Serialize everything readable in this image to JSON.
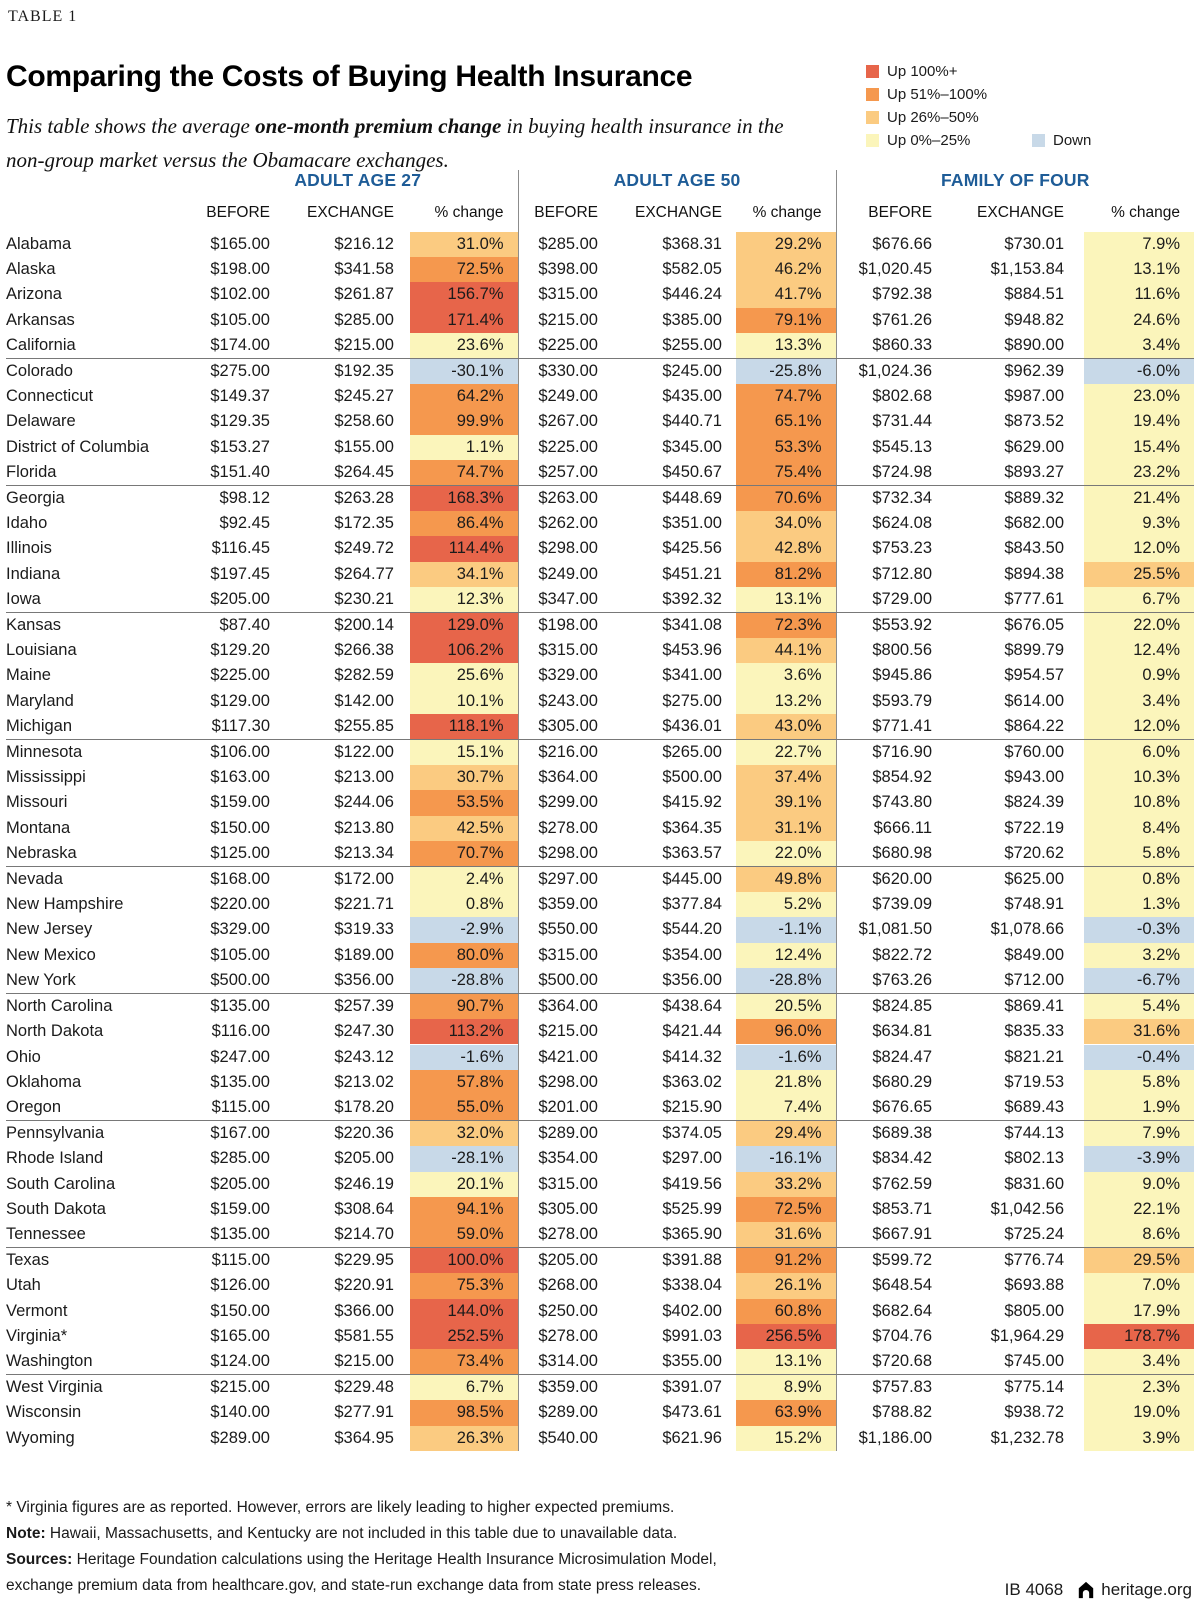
{
  "table_label": "TABLE 1",
  "title": "Comparing the Costs of Buying Health Insurance",
  "subtitle": {
    "line1_pre": "This table shows the average ",
    "line1_bold": "one-month premium change",
    "line1_post": " in buying health insurance in the non-group market versus the Obamacare exchanges."
  },
  "colors": {
    "r": "#e7654a",
    "o": "#f5984e",
    "t": "#fbcb81",
    "y": "#fbf5bb",
    "b": "#c8d9e8",
    "header_blue": "#1e5c97"
  },
  "legend": {
    "items": [
      {
        "label": "Up 100%+",
        "key": "r"
      },
      {
        "label": "Up 51%–100%",
        "key": "o"
      },
      {
        "label": "Up 26%–50%",
        "key": "t"
      },
      {
        "label": "Up 0%–25%",
        "key": "y"
      }
    ],
    "down": {
      "label": "Down",
      "key": "b"
    }
  },
  "chart_data": {
    "type": "table",
    "column_groups": [
      "ADULT AGE 27",
      "ADULT AGE 50",
      "FAMILY OF FOUR"
    ],
    "sub_columns": [
      "BEFORE",
      "EXCHANGE",
      "% change"
    ],
    "rows": [
      {
        "state": "Alabama",
        "values": [
          "$165.00",
          "$216.12",
          "31.0%",
          "$285.00",
          "$368.31",
          "29.2%",
          "$676.66",
          "$730.01",
          "7.9%"
        ],
        "bands": [
          "t",
          "t",
          "y"
        ],
        "group_end": false
      },
      {
        "state": "Alaska",
        "values": [
          "$198.00",
          "$341.58",
          "72.5%",
          "$398.00",
          "$582.05",
          "46.2%",
          "$1,020.45",
          "$1,153.84",
          "13.1%"
        ],
        "bands": [
          "o",
          "t",
          "y"
        ],
        "group_end": false
      },
      {
        "state": "Arizona",
        "values": [
          "$102.00",
          "$261.87",
          "156.7%",
          "$315.00",
          "$446.24",
          "41.7%",
          "$792.38",
          "$884.51",
          "11.6%"
        ],
        "bands": [
          "r",
          "t",
          "y"
        ],
        "group_end": false
      },
      {
        "state": "Arkansas",
        "values": [
          "$105.00",
          "$285.00",
          "171.4%",
          "$215.00",
          "$385.00",
          "79.1%",
          "$761.26",
          "$948.82",
          "24.6%"
        ],
        "bands": [
          "r",
          "o",
          "y"
        ],
        "group_end": false
      },
      {
        "state": "California",
        "values": [
          "$174.00",
          "$215.00",
          "23.6%",
          "$225.00",
          "$255.00",
          "13.3%",
          "$860.33",
          "$890.00",
          "3.4%"
        ],
        "bands": [
          "y",
          "y",
          "y"
        ],
        "group_end": true
      },
      {
        "state": "Colorado",
        "values": [
          "$275.00",
          "$192.35",
          "-30.1%",
          "$330.00",
          "$245.00",
          "-25.8%",
          "$1,024.36",
          "$962.39",
          "-6.0%"
        ],
        "bands": [
          "b",
          "b",
          "b"
        ],
        "group_end": false
      },
      {
        "state": "Connecticut",
        "values": [
          "$149.37",
          "$245.27",
          "64.2%",
          "$249.00",
          "$435.00",
          "74.7%",
          "$802.68",
          "$987.00",
          "23.0%"
        ],
        "bands": [
          "o",
          "o",
          "y"
        ],
        "group_end": false
      },
      {
        "state": "Delaware",
        "values": [
          "$129.35",
          "$258.60",
          "99.9%",
          "$267.00",
          "$440.71",
          "65.1%",
          "$731.44",
          "$873.52",
          "19.4%"
        ],
        "bands": [
          "o",
          "o",
          "y"
        ],
        "group_end": false
      },
      {
        "state": "District of Columbia",
        "values": [
          "$153.27",
          "$155.00",
          "1.1%",
          "$225.00",
          "$345.00",
          "53.3%",
          "$545.13",
          "$629.00",
          "15.4%"
        ],
        "bands": [
          "y",
          "o",
          "y"
        ],
        "group_end": false
      },
      {
        "state": "Florida",
        "values": [
          "$151.40",
          "$264.45",
          "74.7%",
          "$257.00",
          "$450.67",
          "75.4%",
          "$724.98",
          "$893.27",
          "23.2%"
        ],
        "bands": [
          "o",
          "o",
          "y"
        ],
        "group_end": true
      },
      {
        "state": "Georgia",
        "values": [
          "$98.12",
          "$263.28",
          "168.3%",
          "$263.00",
          "$448.69",
          "70.6%",
          "$732.34",
          "$889.32",
          "21.4%"
        ],
        "bands": [
          "r",
          "o",
          "y"
        ],
        "group_end": false
      },
      {
        "state": "Idaho",
        "values": [
          "$92.45",
          "$172.35",
          "86.4%",
          "$262.00",
          "$351.00",
          "34.0%",
          "$624.08",
          "$682.00",
          "9.3%"
        ],
        "bands": [
          "o",
          "t",
          "y"
        ],
        "group_end": false
      },
      {
        "state": "Illinois",
        "values": [
          "$116.45",
          "$249.72",
          "114.4%",
          "$298.00",
          "$425.56",
          "42.8%",
          "$753.23",
          "$843.50",
          "12.0%"
        ],
        "bands": [
          "r",
          "t",
          "y"
        ],
        "group_end": false
      },
      {
        "state": "Indiana",
        "values": [
          "$197.45",
          "$264.77",
          "34.1%",
          "$249.00",
          "$451.21",
          "81.2%",
          "$712.80",
          "$894.38",
          "25.5%"
        ],
        "bands": [
          "t",
          "o",
          "t"
        ],
        "group_end": false
      },
      {
        "state": "Iowa",
        "values": [
          "$205.00",
          "$230.21",
          "12.3%",
          "$347.00",
          "$392.32",
          "13.1%",
          "$729.00",
          "$777.61",
          "6.7%"
        ],
        "bands": [
          "y",
          "y",
          "y"
        ],
        "group_end": true
      },
      {
        "state": "Kansas",
        "values": [
          "$87.40",
          "$200.14",
          "129.0%",
          "$198.00",
          "$341.08",
          "72.3%",
          "$553.92",
          "$676.05",
          "22.0%"
        ],
        "bands": [
          "r",
          "o",
          "y"
        ],
        "group_end": false
      },
      {
        "state": "Louisiana",
        "values": [
          "$129.20",
          "$266.38",
          "106.2%",
          "$315.00",
          "$453.96",
          "44.1%",
          "$800.56",
          "$899.79",
          "12.4%"
        ],
        "bands": [
          "r",
          "t",
          "y"
        ],
        "group_end": false
      },
      {
        "state": "Maine",
        "values": [
          "$225.00",
          "$282.59",
          "25.6%",
          "$329.00",
          "$341.00",
          "3.6%",
          "$945.86",
          "$954.57",
          "0.9%"
        ],
        "bands": [
          "y",
          "y",
          "y"
        ],
        "group_end": false
      },
      {
        "state": "Maryland",
        "values": [
          "$129.00",
          "$142.00",
          "10.1%",
          "$243.00",
          "$275.00",
          "13.2%",
          "$593.79",
          "$614.00",
          "3.4%"
        ],
        "bands": [
          "y",
          "y",
          "y"
        ],
        "group_end": false
      },
      {
        "state": "Michigan",
        "values": [
          "$117.30",
          "$255.85",
          "118.1%",
          "$305.00",
          "$436.01",
          "43.0%",
          "$771.41",
          "$864.22",
          "12.0%"
        ],
        "bands": [
          "r",
          "t",
          "y"
        ],
        "group_end": true
      },
      {
        "state": "Minnesota",
        "values": [
          "$106.00",
          "$122.00",
          "15.1%",
          "$216.00",
          "$265.00",
          "22.7%",
          "$716.90",
          "$760.00",
          "6.0%"
        ],
        "bands": [
          "y",
          "y",
          "y"
        ],
        "group_end": false
      },
      {
        "state": "Mississippi",
        "values": [
          "$163.00",
          "$213.00",
          "30.7%",
          "$364.00",
          "$500.00",
          "37.4%",
          "$854.92",
          "$943.00",
          "10.3%"
        ],
        "bands": [
          "t",
          "t",
          "y"
        ],
        "group_end": false
      },
      {
        "state": "Missouri",
        "values": [
          "$159.00",
          "$244.06",
          "53.5%",
          "$299.00",
          "$415.92",
          "39.1%",
          "$743.80",
          "$824.39",
          "10.8%"
        ],
        "bands": [
          "o",
          "t",
          "y"
        ],
        "group_end": false
      },
      {
        "state": "Montana",
        "values": [
          "$150.00",
          "$213.80",
          "42.5%",
          "$278.00",
          "$364.35",
          "31.1%",
          "$666.11",
          "$722.19",
          "8.4%"
        ],
        "bands": [
          "t",
          "t",
          "y"
        ],
        "group_end": false
      },
      {
        "state": "Nebraska",
        "values": [
          "$125.00",
          "$213.34",
          "70.7%",
          "$298.00",
          "$363.57",
          "22.0%",
          "$680.98",
          "$720.62",
          "5.8%"
        ],
        "bands": [
          "o",
          "y",
          "y"
        ],
        "group_end": true
      },
      {
        "state": "Nevada",
        "values": [
          "$168.00",
          "$172.00",
          "2.4%",
          "$297.00",
          "$445.00",
          "49.8%",
          "$620.00",
          "$625.00",
          "0.8%"
        ],
        "bands": [
          "y",
          "t",
          "y"
        ],
        "group_end": false
      },
      {
        "state": "New Hampshire",
        "values": [
          "$220.00",
          "$221.71",
          "0.8%",
          "$359.00",
          "$377.84",
          "5.2%",
          "$739.09",
          "$748.91",
          "1.3%"
        ],
        "bands": [
          "y",
          "y",
          "y"
        ],
        "group_end": false
      },
      {
        "state": "New Jersey",
        "values": [
          "$329.00",
          "$319.33",
          "-2.9%",
          "$550.00",
          "$544.20",
          "-1.1%",
          "$1,081.50",
          "$1,078.66",
          "-0.3%"
        ],
        "bands": [
          "b",
          "b",
          "b"
        ],
        "group_end": false
      },
      {
        "state": "New Mexico",
        "values": [
          "$105.00",
          "$189.00",
          "80.0%",
          "$315.00",
          "$354.00",
          "12.4%",
          "$822.72",
          "$849.00",
          "3.2%"
        ],
        "bands": [
          "o",
          "y",
          "y"
        ],
        "group_end": false
      },
      {
        "state": "New York",
        "values": [
          "$500.00",
          "$356.00",
          "-28.8%",
          "$500.00",
          "$356.00",
          "-28.8%",
          "$763.26",
          "$712.00",
          "-6.7%"
        ],
        "bands": [
          "b",
          "b",
          "b"
        ],
        "group_end": true
      },
      {
        "state": "North Carolina",
        "values": [
          "$135.00",
          "$257.39",
          "90.7%",
          "$364.00",
          "$438.64",
          "20.5%",
          "$824.85",
          "$869.41",
          "5.4%"
        ],
        "bands": [
          "o",
          "y",
          "y"
        ],
        "group_end": false
      },
      {
        "state": "North Dakota",
        "values": [
          "$116.00",
          "$247.30",
          "113.2%",
          "$215.00",
          "$421.44",
          "96.0%",
          "$634.81",
          "$835.33",
          "31.6%"
        ],
        "bands": [
          "r",
          "o",
          "t"
        ],
        "group_end": false
      },
      {
        "state": "Ohio",
        "values": [
          "$247.00",
          "$243.12",
          "-1.6%",
          "$421.00",
          "$414.32",
          "-1.6%",
          "$824.47",
          "$821.21",
          "-0.4%"
        ],
        "bands": [
          "b",
          "b",
          "b"
        ],
        "group_end": false
      },
      {
        "state": "Oklahoma",
        "values": [
          "$135.00",
          "$213.02",
          "57.8%",
          "$298.00",
          "$363.02",
          "21.8%",
          "$680.29",
          "$719.53",
          "5.8%"
        ],
        "bands": [
          "o",
          "y",
          "y"
        ],
        "group_end": false
      },
      {
        "state": "Oregon",
        "values": [
          "$115.00",
          "$178.20",
          "55.0%",
          "$201.00",
          "$215.90",
          "7.4%",
          "$676.65",
          "$689.43",
          "1.9%"
        ],
        "bands": [
          "o",
          "y",
          "y"
        ],
        "group_end": true
      },
      {
        "state": "Pennsylvania",
        "values": [
          "$167.00",
          "$220.36",
          "32.0%",
          "$289.00",
          "$374.05",
          "29.4%",
          "$689.38",
          "$744.13",
          "7.9%"
        ],
        "bands": [
          "t",
          "t",
          "y"
        ],
        "group_end": false
      },
      {
        "state": "Rhode Island",
        "values": [
          "$285.00",
          "$205.00",
          "-28.1%",
          "$354.00",
          "$297.00",
          "-16.1%",
          "$834.42",
          "$802.13",
          "-3.9%"
        ],
        "bands": [
          "b",
          "b",
          "b"
        ],
        "group_end": false
      },
      {
        "state": "South Carolina",
        "values": [
          "$205.00",
          "$246.19",
          "20.1%",
          "$315.00",
          "$419.56",
          "33.2%",
          "$762.59",
          "$831.60",
          "9.0%"
        ],
        "bands": [
          "y",
          "t",
          "y"
        ],
        "group_end": false
      },
      {
        "state": "South Dakota",
        "values": [
          "$159.00",
          "$308.64",
          "94.1%",
          "$305.00",
          "$525.99",
          "72.5%",
          "$853.71",
          "$1,042.56",
          "22.1%"
        ],
        "bands": [
          "o",
          "o",
          "y"
        ],
        "group_end": false
      },
      {
        "state": "Tennessee",
        "values": [
          "$135.00",
          "$214.70",
          "59.0%",
          "$278.00",
          "$365.90",
          "31.6%",
          "$667.91",
          "$725.24",
          "8.6%"
        ],
        "bands": [
          "o",
          "t",
          "y"
        ],
        "group_end": true
      },
      {
        "state": "Texas",
        "values": [
          "$115.00",
          "$229.95",
          "100.0%",
          "$205.00",
          "$391.88",
          "91.2%",
          "$599.72",
          "$776.74",
          "29.5%"
        ],
        "bands": [
          "r",
          "o",
          "t"
        ],
        "group_end": false
      },
      {
        "state": "Utah",
        "values": [
          "$126.00",
          "$220.91",
          "75.3%",
          "$268.00",
          "$338.04",
          "26.1%",
          "$648.54",
          "$693.88",
          "7.0%"
        ],
        "bands": [
          "o",
          "t",
          "y"
        ],
        "group_end": false
      },
      {
        "state": "Vermont",
        "values": [
          "$150.00",
          "$366.00",
          "144.0%",
          "$250.00",
          "$402.00",
          "60.8%",
          "$682.64",
          "$805.00",
          "17.9%"
        ],
        "bands": [
          "r",
          "o",
          "y"
        ],
        "group_end": false
      },
      {
        "state": "Virginia*",
        "values": [
          "$165.00",
          "$581.55",
          "252.5%",
          "$278.00",
          "$991.03",
          "256.5%",
          "$704.76",
          "$1,964.29",
          "178.7%"
        ],
        "bands": [
          "r",
          "r",
          "r"
        ],
        "group_end": false
      },
      {
        "state": "Washington",
        "values": [
          "$124.00",
          "$215.00",
          "73.4%",
          "$314.00",
          "$355.00",
          "13.1%",
          "$720.68",
          "$745.00",
          "3.4%"
        ],
        "bands": [
          "o",
          "y",
          "y"
        ],
        "group_end": true
      },
      {
        "state": "West Virginia",
        "values": [
          "$215.00",
          "$229.48",
          "6.7%",
          "$359.00",
          "$391.07",
          "8.9%",
          "$757.83",
          "$775.14",
          "2.3%"
        ],
        "bands": [
          "y",
          "y",
          "y"
        ],
        "group_end": false
      },
      {
        "state": "Wisconsin",
        "values": [
          "$140.00",
          "$277.91",
          "98.5%",
          "$289.00",
          "$473.61",
          "63.9%",
          "$788.82",
          "$938.72",
          "19.0%"
        ],
        "bands": [
          "o",
          "o",
          "y"
        ],
        "group_end": false
      },
      {
        "state": "Wyoming",
        "values": [
          "$289.00",
          "$364.95",
          "26.3%",
          "$540.00",
          "$621.96",
          "15.2%",
          "$1,186.00",
          "$1,232.78",
          "3.9%"
        ],
        "bands": [
          "t",
          "y",
          "y"
        ],
        "group_end": false
      }
    ]
  },
  "footnotes": {
    "virginia": "* Virginia figures are as reported. However, errors are likely leading to higher expected premiums.",
    "note_label": "Note:",
    "note_text": " Hawaii, Massachusetts, and Kentucky are not included in this table due to unavailable data.",
    "sources_label": "Sources:",
    "sources_lines": [
      " Heritage Foundation calculations using the Heritage Health Insurance Microsimulation Model,",
      "exchange premium data from healthcare.gov, and state-run exchange data from state press releases."
    ]
  },
  "footer": {
    "id": "IB 4068",
    "site": "heritage.org"
  }
}
